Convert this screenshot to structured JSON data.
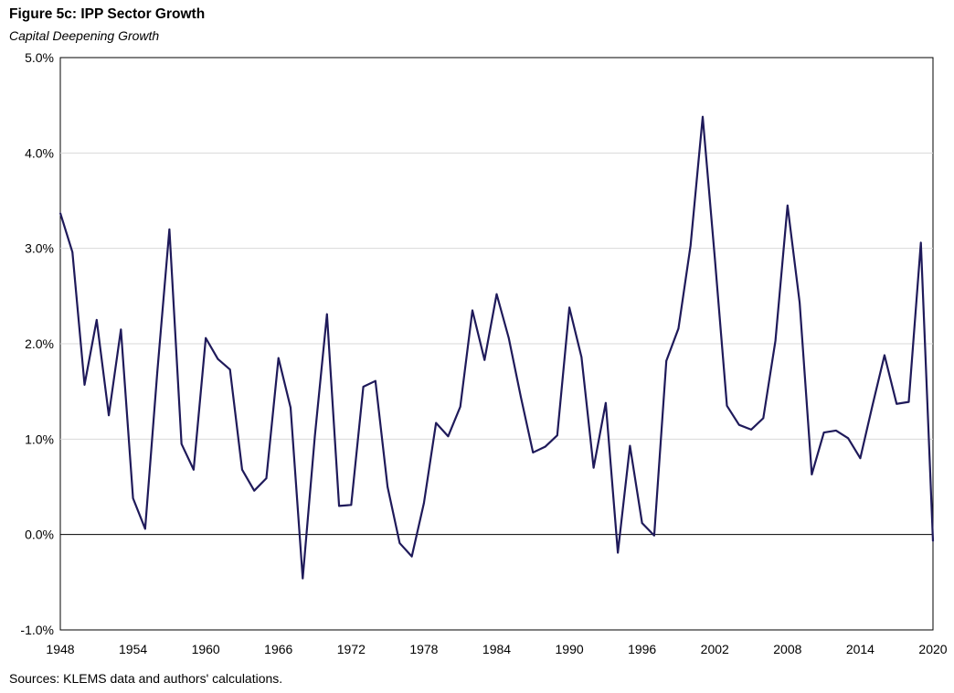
{
  "header": {
    "title": "Figure 5c: IPP Sector Growth",
    "subtitle": "Capital Deepening Growth"
  },
  "footer": {
    "source": "Sources: KLEMS data and authors' calculations."
  },
  "chart_data": {
    "type": "line",
    "title": "Figure 5c: IPP Sector Growth",
    "subtitle": "Capital Deepening Growth",
    "xlabel": "",
    "ylabel": "",
    "xlim": [
      1948,
      2020
    ],
    "ylim": [
      -1.0,
      5.0
    ],
    "y_unit": "%",
    "y_ticks": [
      -1.0,
      0.0,
      1.0,
      2.0,
      3.0,
      4.0,
      5.0
    ],
    "y_tick_labels": [
      "-1.0%",
      "0.0%",
      "1.0%",
      "2.0%",
      "3.0%",
      "4.0%",
      "5.0%"
    ],
    "x_ticks": [
      1948,
      1954,
      1960,
      1966,
      1972,
      1978,
      1984,
      1990,
      1996,
      2002,
      2008,
      2014,
      2020
    ],
    "x_tick_labels": [
      "1948",
      "1954",
      "1960",
      "1966",
      "1972",
      "1978",
      "1984",
      "1990",
      "1996",
      "2002",
      "2008",
      "2014",
      "2020"
    ],
    "grid": "horizontal",
    "legend": "none",
    "line_color": "#1f1a5a",
    "x": [
      1948,
      1949,
      1950,
      1951,
      1952,
      1953,
      1954,
      1955,
      1956,
      1957,
      1958,
      1959,
      1960,
      1961,
      1962,
      1963,
      1964,
      1965,
      1966,
      1967,
      1968,
      1969,
      1970,
      1971,
      1972,
      1973,
      1974,
      1975,
      1976,
      1977,
      1978,
      1979,
      1980,
      1981,
      1982,
      1983,
      1984,
      1985,
      1986,
      1987,
      1988,
      1989,
      1990,
      1991,
      1992,
      1993,
      1994,
      1995,
      1996,
      1997,
      1998,
      1999,
      2000,
      2001,
      2002,
      2003,
      2004,
      2005,
      2006,
      2007,
      2008,
      2009,
      2010,
      2011,
      2012,
      2013,
      2014,
      2015,
      2016,
      2017,
      2018,
      2019,
      2020
    ],
    "series": [
      {
        "values": [
          3.37,
          2.96,
          1.57,
          2.25,
          1.25,
          2.15,
          0.38,
          0.06,
          1.7,
          3.2,
          0.95,
          0.68,
          2.06,
          1.84,
          1.73,
          0.68,
          0.46,
          0.59,
          1.85,
          1.33,
          -0.46,
          1.03,
          2.31,
          0.3,
          0.31,
          1.55,
          1.61,
          0.5,
          -0.09,
          -0.23,
          0.33,
          1.17,
          1.03,
          1.34,
          2.35,
          1.83,
          2.52,
          2.06,
          1.44,
          0.86,
          0.92,
          1.04,
          2.38,
          1.86,
          0.7,
          1.38,
          -0.19,
          0.93,
          0.12,
          -0.01,
          1.82,
          2.16,
          3.03,
          4.38,
          2.9,
          1.35,
          1.15,
          1.1,
          1.22,
          2.03,
          3.45,
          2.43,
          0.63,
          1.07,
          1.09,
          1.01,
          0.8,
          1.35,
          1.88,
          1.37,
          1.39,
          3.06,
          -0.07
        ]
      }
    ]
  }
}
